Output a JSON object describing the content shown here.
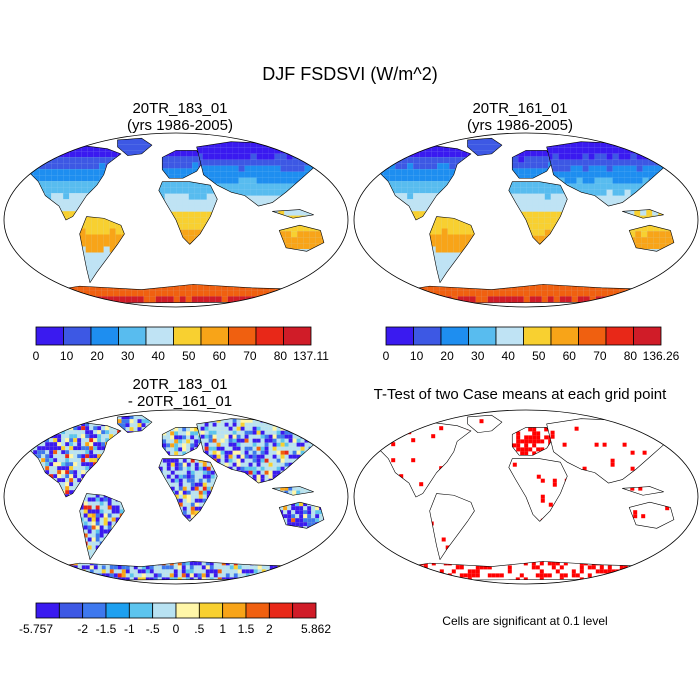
{
  "title": "DJF FSDSVI (W/m^2)",
  "panels": [
    {
      "id": "case1",
      "title_line1": "20TR_183_01",
      "title_line2": "(yrs 1986-2005)",
      "colorbar": {
        "ticks": [
          "0",
          "10",
          "20",
          "30",
          "40",
          "50",
          "60",
          "70",
          "80",
          "137.11"
        ],
        "colors": [
          "#3a1af0",
          "#3d58e4",
          "#1e8ef0",
          "#58bcef",
          "#bfe3f4",
          "#f8d030",
          "#f8a418",
          "#f06010",
          "#e82818",
          "#d01c28"
        ]
      }
    },
    {
      "id": "case2",
      "title_line1": "20TR_161_01",
      "title_line2": "(yrs 1986-2005)",
      "colorbar": {
        "ticks": [
          "0",
          "10",
          "20",
          "30",
          "40",
          "50",
          "60",
          "70",
          "80",
          "136.26"
        ],
        "colors": [
          "#3a1af0",
          "#3d58e4",
          "#1e8ef0",
          "#58bcef",
          "#bfe3f4",
          "#f8d030",
          "#f8a418",
          "#f06010",
          "#e82818",
          "#d01c28"
        ]
      }
    },
    {
      "id": "diff",
      "title_line1": "20TR_183_01",
      "title_line2": "- 20TR_161_01",
      "colorbar": {
        "ticks": [
          "-5.757",
          "-2",
          "-1.5",
          "-1",
          "-.5",
          "0",
          ".5",
          "1",
          "1.5",
          "2",
          "5.862"
        ],
        "colors": [
          "#3a1af0",
          "#3d58e4",
          "#3e78ee",
          "#1ea0f0",
          "#5cc4ee",
          "#b8e2f2",
          "#fff6a8",
          "#f8d030",
          "#f8a418",
          "#f06010",
          "#e82818",
          "#d01c28"
        ]
      }
    },
    {
      "id": "ttest",
      "title_line1": "T-Test of two Case means at each grid point",
      "note": "Cells are significant at 0.1 level"
    }
  ]
}
